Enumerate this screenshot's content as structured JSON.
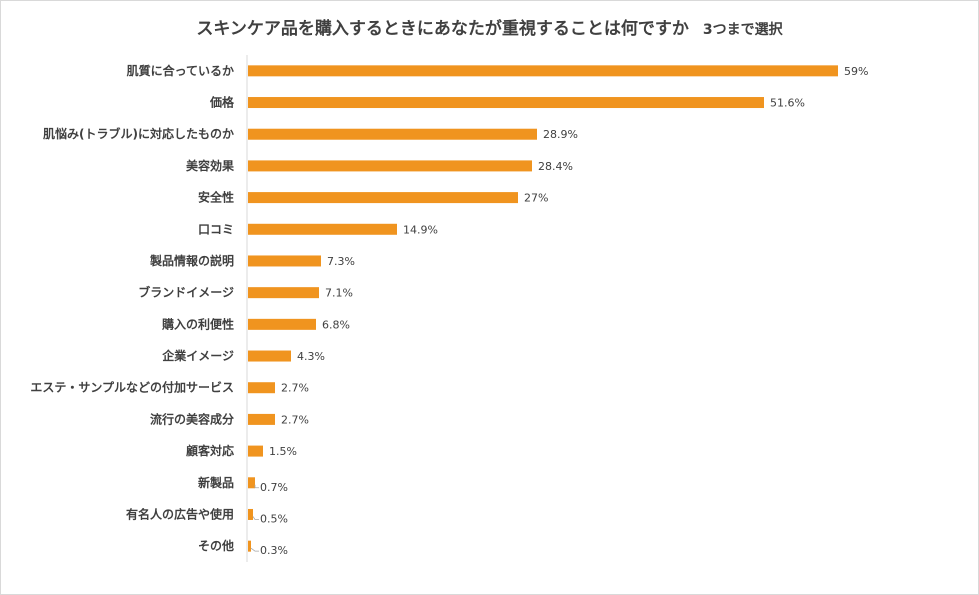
{
  "chart_data": {
    "type": "bar",
    "orientation": "horizontal",
    "title": "スキンケア品を購入するときにあなたが重視することは何ですか",
    "subtitle": "3つまで選択",
    "categories": [
      "肌質に合っているか",
      "価格",
      "肌悩み(トラブル)に対応したものか",
      "美容効果",
      "安全性",
      "口コミ",
      "製品情報の説明",
      "ブランドイメージ",
      "購入の利便性",
      "企業イメージ",
      "エステ・サンプルなどの付加サービス",
      "流行の美容成分",
      "顧客対応",
      "新製品",
      "有名人の広告や使用",
      "その他"
    ],
    "values": [
      59,
      51.6,
      28.9,
      28.4,
      27,
      14.9,
      7.3,
      7.1,
      6.8,
      4.3,
      2.7,
      2.7,
      1.5,
      0.7,
      0.5,
      0.3
    ],
    "value_labels": [
      "59%",
      "51.6%",
      "28.9%",
      "28.4%",
      "27%",
      "14.9%",
      "7.3%",
      "7.1%",
      "6.8%",
      "4.3%",
      "2.7%",
      "2.7%",
      "1.5%",
      "0.7%",
      "0.5%",
      "0.3%"
    ],
    "xlim": [
      0,
      60
    ],
    "bar_color": "#F0941F",
    "grid": false,
    "legend": "none"
  }
}
